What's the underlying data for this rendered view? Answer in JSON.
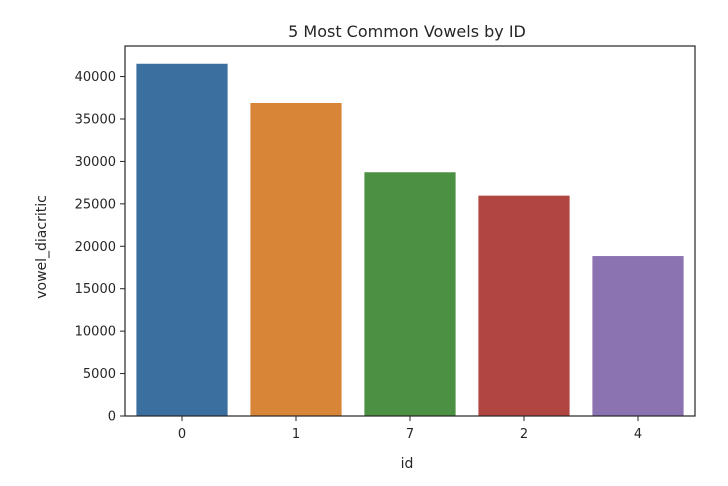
{
  "chart_data": {
    "type": "bar",
    "title": "5 Most Common Vowels by ID",
    "xlabel": "id",
    "ylabel": "vowel_diacritic",
    "categories": [
      "0",
      "1",
      "7",
      "2",
      "4"
    ],
    "values": [
      41508,
      36886,
      28723,
      25967,
      18848
    ],
    "colors": [
      "#3a6fa0",
      "#d88537",
      "#4c9143",
      "#b14542",
      "#8b72b1"
    ],
    "ylim": [
      0,
      43600
    ],
    "yticks": [
      0,
      5000,
      10000,
      15000,
      20000,
      25000,
      30000,
      35000,
      40000
    ],
    "grid": false,
    "legend": false
  }
}
